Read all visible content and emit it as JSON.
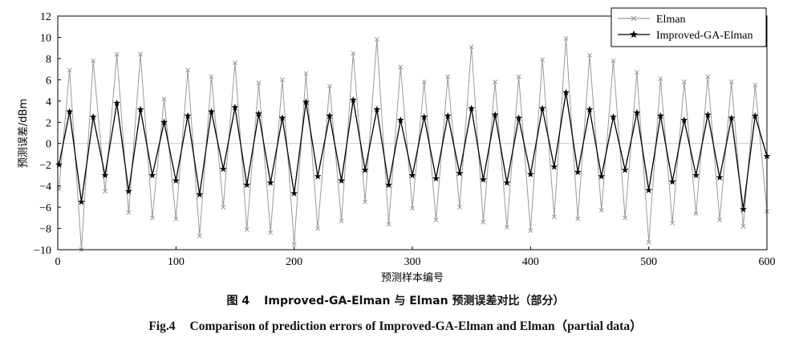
{
  "chart_data": {
    "type": "line",
    "title": "",
    "xlabel": "预测样本编号",
    "ylabel": "预测误差/dBm",
    "xlim": [
      0,
      600
    ],
    "ylim": [
      -10,
      12
    ],
    "xticks": [
      0,
      100,
      200,
      300,
      400,
      500,
      600
    ],
    "yticks": [
      -10,
      -8,
      -6,
      -4,
      -2,
      0,
      2,
      4,
      6,
      8,
      10,
      12
    ],
    "legend_position": "top-right",
    "series": [
      {
        "name": "Elman",
        "color": "#9a9a9a",
        "marker": "x",
        "x": [
          1,
          10,
          20,
          30,
          40,
          50,
          60,
          70,
          80,
          90,
          100,
          110,
          120,
          130,
          140,
          150,
          160,
          170,
          180,
          190,
          200,
          210,
          220,
          230,
          240,
          250,
          260,
          270,
          280,
          290,
          300,
          310,
          320,
          330,
          340,
          350,
          360,
          370,
          380,
          390,
          400,
          410,
          420,
          430,
          440,
          450,
          460,
          470,
          480,
          490,
          500,
          510,
          520,
          530,
          540,
          550,
          560,
          570,
          580,
          590,
          600
        ],
        "values": [
          -4.3,
          6.9,
          -10.0,
          7.8,
          -4.5,
          8.4,
          -6.5,
          8.4,
          -7.0,
          4.2,
          -7.1,
          6.9,
          -8.7,
          6.3,
          -6.0,
          7.6,
          -8.1,
          5.7,
          -8.4,
          6.0,
          -9.5,
          6.6,
          -8.0,
          5.4,
          -7.3,
          8.5,
          -5.5,
          9.8,
          -7.6,
          7.2,
          -6.1,
          5.8,
          -7.2,
          6.3,
          -6.0,
          9.1,
          -7.4,
          5.8,
          -7.9,
          6.3,
          -8.2,
          7.9,
          -6.9,
          9.9,
          -7.1,
          8.3,
          -6.3,
          7.8,
          -7.0,
          6.7,
          -9.3,
          6.1,
          -7.5,
          5.8,
          -6.6,
          6.3,
          -7.2,
          5.8,
          -7.8,
          5.5,
          -6.4
        ]
      },
      {
        "name": "Improved-GA-Elman",
        "color": "#000000",
        "marker": "star",
        "x": [
          1,
          10,
          20,
          30,
          40,
          50,
          60,
          70,
          80,
          90,
          100,
          110,
          120,
          130,
          140,
          150,
          160,
          170,
          180,
          190,
          200,
          210,
          220,
          230,
          240,
          250,
          260,
          270,
          280,
          290,
          300,
          310,
          320,
          330,
          340,
          350,
          360,
          370,
          380,
          390,
          400,
          410,
          420,
          430,
          440,
          450,
          460,
          470,
          480,
          490,
          500,
          510,
          520,
          530,
          540,
          550,
          560,
          570,
          580,
          590,
          600
        ],
        "values": [
          -2.0,
          3.0,
          -5.5,
          2.5,
          -3.0,
          3.8,
          -4.5,
          3.2,
          -3.0,
          2.0,
          -3.5,
          2.6,
          -4.8,
          3.0,
          -2.4,
          3.4,
          -3.9,
          2.8,
          -3.7,
          2.4,
          -4.7,
          3.9,
          -3.1,
          2.6,
          -3.5,
          4.1,
          -2.5,
          3.2,
          -3.9,
          2.2,
          -3.0,
          2.5,
          -3.3,
          2.6,
          -2.8,
          3.3,
          -3.4,
          2.7,
          -3.7,
          2.4,
          -2.9,
          3.3,
          -2.2,
          4.8,
          -2.7,
          3.2,
          -3.1,
          2.5,
          -2.5,
          2.9,
          -4.4,
          2.6,
          -3.6,
          2.2,
          -3.0,
          2.7,
          -3.2,
          2.4,
          -6.2,
          2.6,
          -1.2
        ]
      }
    ]
  },
  "caption": {
    "cn_number": "图 4",
    "cn_text": "Improved-GA-Elman 与 Elman 预测误差对比（部分）",
    "en_number": "Fig.4",
    "en_text": "Comparison of prediction errors of Improved-GA-Elman and Elman（partial data）"
  }
}
